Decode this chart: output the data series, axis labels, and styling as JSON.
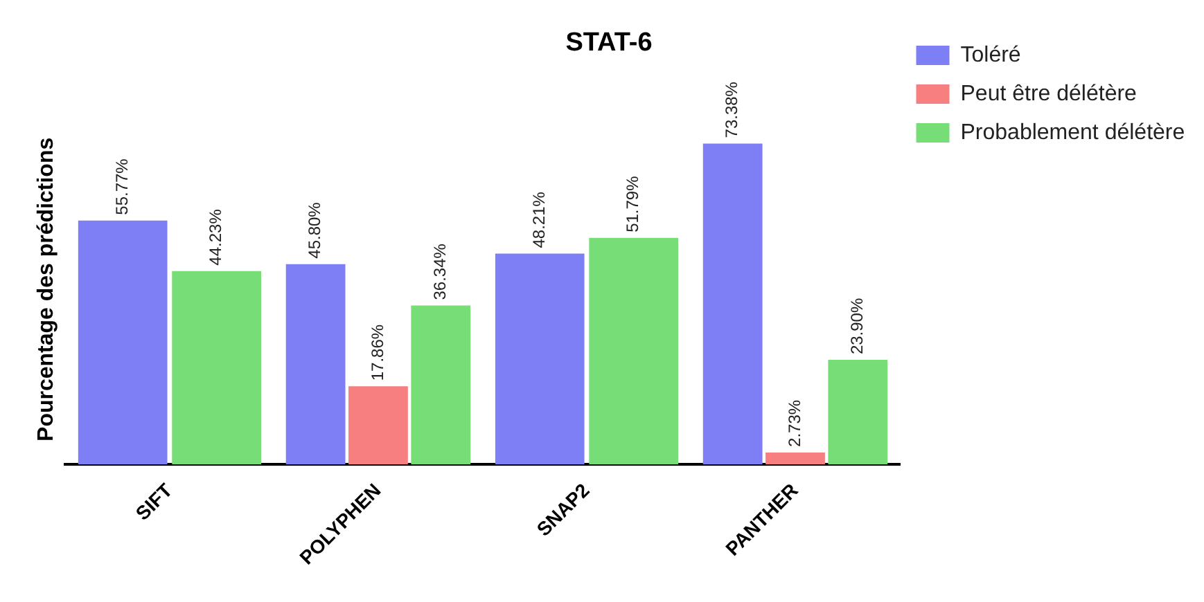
{
  "chart_data": {
    "type": "bar",
    "title": "STAT-6",
    "ylabel": "Pourcentage des prédictions",
    "categories": [
      "SIFT",
      "POLYPHEN",
      "SNAP2",
      "PANTHER"
    ],
    "legend": "right",
    "series": [
      {
        "name": "Toléré",
        "color": "#7f7ff5",
        "values": [
          55.77,
          45.8,
          48.21,
          73.38
        ],
        "value_labels": [
          "55.77%",
          "45.80%",
          "48.21%",
          "73.38%"
        ]
      },
      {
        "name": "Peut être délétère",
        "color": "#f77f7f",
        "values": [
          null,
          17.86,
          null,
          2.73
        ],
        "value_labels": [
          null,
          "17.86%",
          null,
          "2.73%"
        ]
      },
      {
        "name": "Probablement délétère",
        "color": "#77dd77",
        "values": [
          44.23,
          36.34,
          51.79,
          23.9
        ],
        "value_labels": [
          "44.23%",
          "36.34%",
          "51.79%",
          "23.90%"
        ]
      }
    ]
  }
}
